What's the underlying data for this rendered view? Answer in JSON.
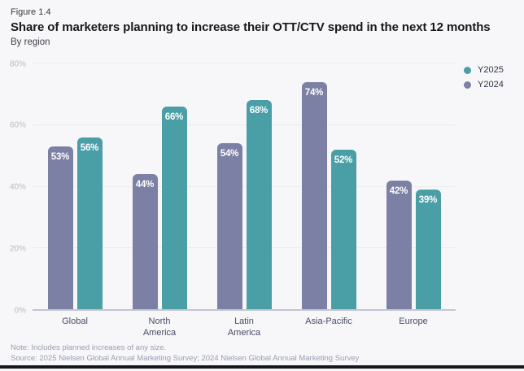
{
  "header": {
    "figure_label": "Figure 1.4",
    "title": "Share of marketers planning to increase their OTT/CTV spend in the next 12 months",
    "subtitle": "By region"
  },
  "legend": [
    {
      "label": "Y2025",
      "color": "#4A9EA6"
    },
    {
      "label": "Y2024",
      "color": "#7C80A4"
    }
  ],
  "chart_data": {
    "type": "bar",
    "categories": [
      "Global",
      "North America",
      "Latin America",
      "Asia-Pacific",
      "Europe"
    ],
    "series": [
      {
        "name": "Y2024",
        "color": "#7C80A4",
        "values": [
          53,
          44,
          54,
          74,
          42
        ]
      },
      {
        "name": "Y2025",
        "color": "#4A9EA6",
        "values": [
          56,
          66,
          68,
          52,
          39
        ]
      }
    ],
    "value_suffix": "%",
    "title": "Share of marketers planning to increase their OTT/CTV spend in the next 12 months",
    "xlabel": "",
    "ylabel": "",
    "ylim": [
      0,
      80
    ],
    "yticks": [
      "0%",
      "20%",
      "40%",
      "60%",
      "80%"
    ],
    "grid": true,
    "legend_position": "top-right"
  },
  "footer": {
    "note": "Note: Includes planned increases of any size.",
    "source": "Source: 2025 Nielsen Global Annual Marketing Survey; 2024 Nielsen Global Annual Marketing Survey"
  },
  "colors": {
    "background": "#F7F7F9",
    "gridline": "#E9EAEF",
    "axis_line": "#C3C5D1",
    "tick_text": "#B9BCC8",
    "category_text": "#474C63",
    "bar_label_text": "#FFFFFF",
    "bottom_rule": "#16171E"
  }
}
